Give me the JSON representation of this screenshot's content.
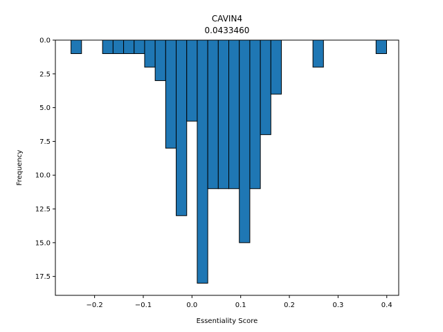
{
  "chart_data": {
    "type": "bar",
    "title": "CAVIN4",
    "subtitle": "0.0433460",
    "xlabel": "Essentiality Score",
    "ylabel": "Frequency",
    "bar_color": "#1f77b4",
    "edge_color": "#000000",
    "bin_width": 0.0216,
    "xlim": [
      -0.2805,
      0.4245
    ],
    "ylim": [
      18.9,
      0
    ],
    "y_inverted": true,
    "xticks": [
      -0.2,
      -0.1,
      0.0,
      0.1,
      0.2,
      0.3,
      0.4
    ],
    "xtick_labels": [
      "−0.2",
      "−0.1",
      "0.0",
      "0.1",
      "0.2",
      "0.3",
      "0.4"
    ],
    "yticks": [
      0,
      2.5,
      5,
      7.5,
      10,
      12.5,
      15,
      17.5
    ],
    "ytick_labels": [
      "0.0",
      "2.5",
      "5.0",
      "7.5",
      "10.0",
      "12.5",
      "15.0",
      "17.5"
    ],
    "bins": [
      {
        "left": -0.2484,
        "value": 1
      },
      {
        "left": -0.1836,
        "value": 1
      },
      {
        "left": -0.162,
        "value": 1
      },
      {
        "left": -0.1404,
        "value": 1
      },
      {
        "left": -0.1188,
        "value": 1
      },
      {
        "left": -0.0972,
        "value": 2
      },
      {
        "left": -0.0756,
        "value": 3
      },
      {
        "left": -0.054,
        "value": 8
      },
      {
        "left": -0.0324,
        "value": 13
      },
      {
        "left": -0.0108,
        "value": 6
      },
      {
        "left": 0.0108,
        "value": 18
      },
      {
        "left": 0.0324,
        "value": 11
      },
      {
        "left": 0.054,
        "value": 11
      },
      {
        "left": 0.0756,
        "value": 11
      },
      {
        "left": 0.0972,
        "value": 15
      },
      {
        "left": 0.1188,
        "value": 11
      },
      {
        "left": 0.1404,
        "value": 7
      },
      {
        "left": 0.162,
        "value": 4
      },
      {
        "left": 0.2484,
        "value": 2
      },
      {
        "left": 0.378,
        "value": 1
      }
    ]
  }
}
